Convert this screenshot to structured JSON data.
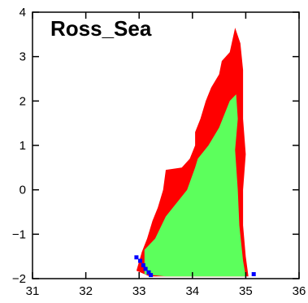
{
  "chart_data": {
    "type": "scatter",
    "title": "Ross_Sea",
    "xlabel": "",
    "ylabel": "",
    "xlim": [
      31,
      36
    ],
    "ylim": [
      -2,
      4
    ],
    "x_ticks": [
      "31",
      "32",
      "33",
      "34",
      "35",
      "36"
    ],
    "y_ticks": [
      "-2",
      "-1",
      "0",
      "1",
      "2",
      "3",
      "4"
    ],
    "grid": false,
    "colors": {
      "red": "#ff0000",
      "green": "#5cff5c",
      "blue": "#0000ff"
    },
    "regions": [
      {
        "color": "red",
        "polygon": [
          [
            32.95,
            -1.82
          ],
          [
            33.05,
            -1.4
          ],
          [
            33.15,
            -1.1
          ],
          [
            33.25,
            -0.7
          ],
          [
            33.35,
            -0.4
          ],
          [
            33.45,
            0.0
          ],
          [
            33.5,
            0.45
          ],
          [
            33.8,
            0.5
          ],
          [
            33.95,
            0.7
          ],
          [
            34.05,
            1.0
          ],
          [
            34.05,
            1.3
          ],
          [
            34.15,
            1.6
          ],
          [
            34.25,
            2.0
          ],
          [
            34.35,
            2.3
          ],
          [
            34.5,
            2.6
          ],
          [
            34.55,
            2.9
          ],
          [
            34.7,
            3.1
          ],
          [
            34.8,
            3.65
          ],
          [
            34.9,
            3.3
          ],
          [
            34.95,
            2.7
          ],
          [
            34.95,
            2.2
          ],
          [
            34.95,
            1.6
          ],
          [
            35.0,
            0.8
          ],
          [
            34.95,
            0.0
          ],
          [
            34.95,
            -0.8
          ],
          [
            35.0,
            -1.5
          ],
          [
            35.05,
            -1.95
          ],
          [
            34.2,
            -1.95
          ],
          [
            33.7,
            -1.95
          ],
          [
            33.2,
            -1.95
          ]
        ]
      },
      {
        "color": "green",
        "polygon": [
          [
            33.1,
            -1.9
          ],
          [
            33.1,
            -1.35
          ],
          [
            33.3,
            -1.1
          ],
          [
            33.5,
            -0.6
          ],
          [
            33.7,
            -0.3
          ],
          [
            33.9,
            0.0
          ],
          [
            34.05,
            0.5
          ],
          [
            34.1,
            0.7
          ],
          [
            34.3,
            1.0
          ],
          [
            34.5,
            1.4
          ],
          [
            34.7,
            2.0
          ],
          [
            34.82,
            2.15
          ],
          [
            34.85,
            1.6
          ],
          [
            34.8,
            0.9
          ],
          [
            34.85,
            0.0
          ],
          [
            34.88,
            -0.8
          ],
          [
            34.95,
            -1.6
          ],
          [
            35.0,
            -1.95
          ],
          [
            34.2,
            -1.95
          ],
          [
            33.5,
            -1.95
          ]
        ]
      },
      {
        "color": "blue",
        "points": [
          [
            32.95,
            -1.52
          ],
          [
            33.02,
            -1.6
          ],
          [
            33.08,
            -1.7
          ],
          [
            33.12,
            -1.78
          ],
          [
            33.18,
            -1.86
          ],
          [
            33.22,
            -1.92
          ],
          [
            35.15,
            -1.9
          ]
        ]
      }
    ]
  }
}
